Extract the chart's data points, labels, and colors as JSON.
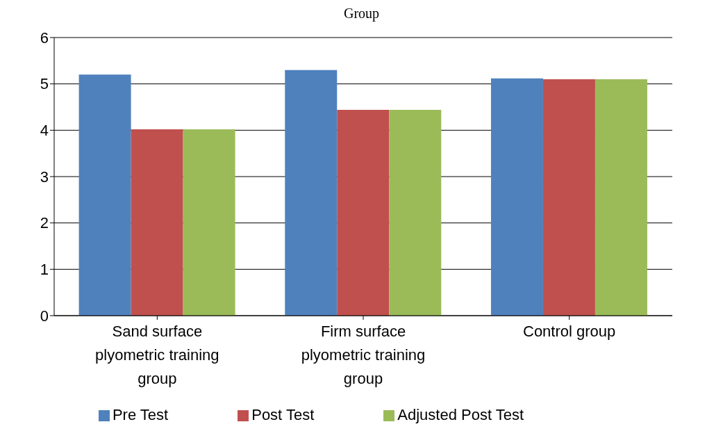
{
  "chart_data": {
    "type": "bar",
    "title": "Group",
    "categories": [
      "Sand surface plyometric training group",
      "Firm surface plyometric training group",
      "Control group"
    ],
    "series": [
      {
        "name": "Pre Test",
        "color": "#4f81bd",
        "values": [
          5.2,
          5.3,
          5.12
        ]
      },
      {
        "name": "Post Test",
        "color": "#c0504d",
        "values": [
          4.02,
          4.44,
          5.1
        ]
      },
      {
        "name": "Adjusted Post Test",
        "color": "#9bbb59",
        "values": [
          4.02,
          4.44,
          5.1
        ]
      }
    ],
    "ylim": [
      0,
      6
    ],
    "yticks": [
      0,
      1,
      2,
      3,
      4,
      5,
      6
    ],
    "grid": "y",
    "legend": "bottom"
  }
}
